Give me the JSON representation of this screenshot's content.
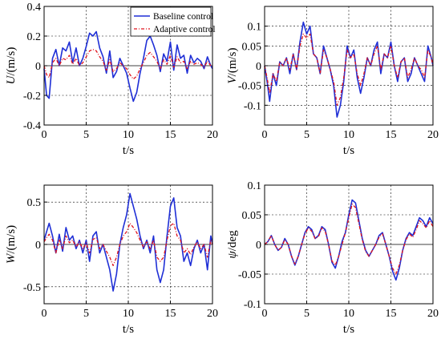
{
  "colors": {
    "baseline": "#1f2fd6",
    "adaptive": "#e0141e"
  },
  "legend": {
    "baseline": "Baseline control",
    "adaptive": "Adaptive control"
  },
  "chart_data": [
    {
      "type": "line",
      "ylabel_sym": "U",
      "ylabel_unit": "/(m/s)",
      "xlabel": "t/s",
      "xlim": [
        0,
        20
      ],
      "ylim": [
        -0.4,
        0.4
      ],
      "xticks": [
        0,
        5,
        10,
        15,
        20
      ],
      "yticks": [
        -0.4,
        -0.2,
        0,
        0.2,
        0.4
      ],
      "ytick_labels": [
        "-0.4",
        "-0.2",
        "0",
        "0.2",
        "0.4"
      ],
      "grid": true,
      "legend": "top-right",
      "series": [
        {
          "name": "Baseline control",
          "x": [
            0,
            0.3,
            0.6,
            1,
            1.4,
            1.8,
            2.2,
            2.6,
            3,
            3.4,
            3.8,
            4.2,
            4.6,
            5,
            5.4,
            5.8,
            6.2,
            6.6,
            7,
            7.4,
            7.8,
            8.2,
            8.6,
            9,
            9.4,
            9.8,
            10.2,
            10.6,
            11,
            11.4,
            11.8,
            12.2,
            12.6,
            13,
            13.4,
            13.8,
            14.2,
            14.6,
            15,
            15.4,
            15.8,
            16.2,
            16.6,
            17,
            17.4,
            17.8,
            18.2,
            18.6,
            19,
            19.4,
            19.8,
            20
          ],
          "values": [
            -0.02,
            -0.2,
            -0.22,
            0.05,
            0.11,
            0.0,
            0.12,
            0.1,
            0.16,
            0.02,
            0.12,
            0.0,
            0.05,
            0.13,
            0.22,
            0.2,
            0.23,
            0.12,
            0.06,
            -0.05,
            0.1,
            -0.08,
            -0.04,
            0.05,
            0.0,
            -0.05,
            -0.15,
            -0.24,
            -0.18,
            -0.05,
            0.05,
            0.17,
            0.2,
            0.14,
            0.07,
            -0.04,
            0.08,
            0.03,
            0.16,
            -0.03,
            0.14,
            0.05,
            0.07,
            -0.05,
            0.07,
            0.02,
            0.05,
            0.03,
            -0.02,
            0.06,
            0.0,
            -0.02
          ]
        },
        {
          "name": "Adaptive control",
          "x": [
            0,
            0.3,
            0.6,
            1,
            1.4,
            1.8,
            2.2,
            2.6,
            3,
            3.4,
            3.8,
            4.2,
            4.6,
            5,
            5.4,
            5.8,
            6.2,
            6.6,
            7,
            7.4,
            7.8,
            8.2,
            8.6,
            9,
            9.4,
            9.8,
            10.2,
            10.6,
            11,
            11.4,
            11.8,
            12.2,
            12.6,
            13,
            13.4,
            13.8,
            14.2,
            14.6,
            15,
            15.4,
            15.8,
            16.2,
            16.6,
            17,
            17.4,
            17.8,
            18.2,
            18.6,
            19,
            19.4,
            19.8,
            20
          ],
          "values": [
            0.0,
            -0.06,
            -0.08,
            0.02,
            0.05,
            0.0,
            0.05,
            0.04,
            0.07,
            0.01,
            0.05,
            0.0,
            0.02,
            0.06,
            0.1,
            0.11,
            0.1,
            0.06,
            0.03,
            -0.03,
            0.04,
            -0.04,
            -0.02,
            0.02,
            0.0,
            -0.02,
            -0.06,
            -0.09,
            -0.07,
            -0.02,
            0.02,
            0.07,
            0.09,
            0.06,
            0.03,
            -0.02,
            0.04,
            0.01,
            0.07,
            -0.01,
            0.06,
            0.02,
            0.03,
            -0.02,
            0.03,
            0.01,
            0.02,
            0.01,
            -0.01,
            0.03,
            0.0,
            -0.01
          ]
        }
      ]
    },
    {
      "type": "line",
      "ylabel_sym": "V",
      "ylabel_unit": "/(m/s)",
      "xlabel": "t/s",
      "xlim": [
        0,
        20
      ],
      "ylim": [
        -0.15,
        0.15
      ],
      "xticks": [
        0,
        5,
        10,
        15,
        20
      ],
      "yticks": [
        -0.1,
        -0.05,
        0,
        0.05,
        0.1
      ],
      "ytick_labels": [
        "-0.1",
        "-0.05",
        "0",
        "0.05",
        "0.1"
      ],
      "grid": true,
      "series": [
        {
          "name": "Baseline control",
          "x": [
            0,
            0.3,
            0.6,
            1,
            1.4,
            1.8,
            2.2,
            2.6,
            3,
            3.4,
            3.8,
            4.2,
            4.6,
            5,
            5.4,
            5.8,
            6.2,
            6.6,
            7,
            7.4,
            7.8,
            8.2,
            8.6,
            9,
            9.4,
            9.8,
            10.2,
            10.6,
            11,
            11.4,
            11.8,
            12.2,
            12.6,
            13,
            13.4,
            13.8,
            14.2,
            14.6,
            15,
            15.4,
            15.8,
            16.2,
            16.6,
            17,
            17.4,
            17.8,
            18.2,
            18.6,
            19,
            19.4,
            19.8,
            20
          ],
          "values": [
            0.0,
            -0.04,
            -0.09,
            -0.02,
            -0.05,
            0.01,
            0.0,
            0.02,
            -0.02,
            0.03,
            -0.01,
            0.06,
            0.11,
            0.08,
            0.1,
            0.03,
            0.02,
            -0.02,
            0.05,
            0.02,
            -0.01,
            -0.05,
            -0.13,
            -0.1,
            -0.04,
            0.05,
            0.02,
            0.04,
            -0.03,
            -0.07,
            -0.03,
            0.02,
            0.0,
            0.04,
            0.06,
            -0.02,
            0.03,
            0.02,
            0.06,
            0.0,
            -0.04,
            0.01,
            0.02,
            -0.04,
            -0.02,
            0.02,
            0.0,
            -0.02,
            -0.04,
            0.05,
            0.02,
            0.0
          ]
        },
        {
          "name": "Adaptive control",
          "x": [
            0,
            0.3,
            0.6,
            1,
            1.4,
            1.8,
            2.2,
            2.6,
            3,
            3.4,
            3.8,
            4.2,
            4.6,
            5,
            5.4,
            5.8,
            6.2,
            6.6,
            7,
            7.4,
            7.8,
            8.2,
            8.6,
            9,
            9.4,
            9.8,
            10.2,
            10.6,
            11,
            11.4,
            11.8,
            12.2,
            12.6,
            13,
            13.4,
            13.8,
            14.2,
            14.6,
            15,
            15.4,
            15.8,
            16.2,
            16.6,
            17,
            17.4,
            17.8,
            18.2,
            18.6,
            19,
            19.4,
            19.8,
            20
          ],
          "values": [
            0.0,
            -0.03,
            -0.07,
            -0.02,
            -0.04,
            0.01,
            0.0,
            0.02,
            -0.01,
            0.03,
            -0.01,
            0.05,
            0.08,
            0.07,
            0.08,
            0.03,
            0.02,
            -0.02,
            0.04,
            0.02,
            -0.01,
            -0.04,
            -0.1,
            -0.08,
            -0.03,
            0.04,
            0.02,
            0.03,
            -0.02,
            -0.05,
            -0.02,
            0.02,
            0.0,
            0.03,
            0.05,
            -0.01,
            0.03,
            0.02,
            0.05,
            0.0,
            -0.03,
            0.01,
            0.02,
            -0.03,
            -0.01,
            0.02,
            0.0,
            -0.01,
            -0.03,
            0.04,
            0.02,
            0.0
          ]
        }
      ]
    },
    {
      "type": "line",
      "ylabel_sym": "W",
      "ylabel_unit": "/(m/s)",
      "xlabel": "t/s",
      "xlim": [
        0,
        20
      ],
      "ylim": [
        -0.7,
        0.7
      ],
      "xticks": [
        0,
        5,
        10,
        15,
        20
      ],
      "yticks": [
        -0.5,
        0,
        0.5
      ],
      "ytick_labels": [
        "-0.5",
        "0",
        "0.5"
      ],
      "grid": true,
      "series": [
        {
          "name": "Baseline control",
          "x": [
            0,
            0.3,
            0.6,
            1,
            1.4,
            1.8,
            2.2,
            2.6,
            3,
            3.4,
            3.8,
            4.2,
            4.6,
            5,
            5.4,
            5.8,
            6.2,
            6.6,
            7,
            7.4,
            7.8,
            8.2,
            8.6,
            9,
            9.4,
            9.8,
            10.2,
            10.6,
            11,
            11.4,
            11.8,
            12.2,
            12.6,
            13,
            13.4,
            13.8,
            14.2,
            14.6,
            15,
            15.4,
            15.8,
            16.2,
            16.6,
            17,
            17.4,
            17.8,
            18.2,
            18.6,
            19,
            19.4,
            19.8,
            20
          ],
          "values": [
            0.05,
            0.15,
            0.25,
            0.1,
            -0.1,
            0.12,
            -0.08,
            0.2,
            0.05,
            0.1,
            -0.05,
            0.05,
            -0.1,
            0.05,
            -0.2,
            0.1,
            0.15,
            -0.1,
            0.0,
            -0.15,
            -0.3,
            -0.55,
            -0.35,
            0.0,
            0.2,
            0.35,
            0.6,
            0.45,
            0.3,
            0.1,
            -0.05,
            0.05,
            -0.1,
            0.1,
            -0.3,
            -0.45,
            -0.3,
            0.1,
            0.45,
            0.55,
            0.2,
            0.1,
            -0.2,
            -0.1,
            -0.25,
            -0.05,
            0.05,
            -0.1,
            0.0,
            -0.3,
            0.1,
            0.0
          ]
        },
        {
          "name": "Adaptive control",
          "x": [
            0,
            0.3,
            0.6,
            1,
            1.4,
            1.8,
            2.2,
            2.6,
            3,
            3.4,
            3.8,
            4.2,
            4.6,
            5,
            5.4,
            5.8,
            6.2,
            6.6,
            7,
            7.4,
            7.8,
            8.2,
            8.6,
            9,
            9.4,
            9.8,
            10.2,
            10.6,
            11,
            11.4,
            11.8,
            12.2,
            12.6,
            13,
            13.4,
            13.8,
            14.2,
            14.6,
            15,
            15.4,
            15.8,
            16.2,
            16.6,
            17,
            17.4,
            17.8,
            18.2,
            18.6,
            19,
            19.4,
            19.8,
            20
          ],
          "values": [
            0.03,
            0.08,
            0.12,
            0.05,
            -0.1,
            0.06,
            -0.05,
            0.1,
            0.02,
            0.05,
            -0.03,
            0.03,
            -0.05,
            0.02,
            -0.1,
            0.06,
            0.08,
            -0.05,
            0.0,
            -0.08,
            -0.15,
            -0.25,
            -0.15,
            0.0,
            0.1,
            0.15,
            0.25,
            0.2,
            0.14,
            0.05,
            -0.03,
            0.03,
            -0.05,
            0.05,
            -0.15,
            -0.2,
            -0.15,
            0.05,
            0.22,
            0.25,
            0.1,
            0.05,
            -0.1,
            -0.05,
            -0.12,
            -0.03,
            0.03,
            -0.05,
            0.0,
            -0.15,
            0.05,
            0.0
          ]
        }
      ]
    },
    {
      "type": "line",
      "ylabel_sym": "ψ",
      "ylabel_unit": "/deg",
      "xlabel": "t/s",
      "xlim": [
        0,
        20
      ],
      "ylim": [
        -0.1,
        0.1
      ],
      "xticks": [
        0,
        5,
        10,
        15,
        20
      ],
      "yticks": [
        -0.1,
        -0.05,
        0,
        0.05,
        0.1
      ],
      "ytick_labels": [
        "-0.1",
        "-0.05",
        "0",
        "0.05",
        "0.1"
      ],
      "grid": true,
      "series": [
        {
          "name": "Baseline control",
          "x": [
            0,
            0.4,
            0.8,
            1.2,
            1.6,
            2,
            2.4,
            2.8,
            3.2,
            3.6,
            4,
            4.4,
            4.8,
            5.2,
            5.6,
            6,
            6.4,
            6.8,
            7.2,
            7.6,
            8,
            8.4,
            8.8,
            9.2,
            9.6,
            10,
            10.4,
            10.8,
            11.2,
            11.6,
            12,
            12.4,
            12.8,
            13.2,
            13.6,
            14,
            14.4,
            14.8,
            15.2,
            15.6,
            16,
            16.4,
            16.8,
            17.2,
            17.6,
            18,
            18.4,
            18.8,
            19.2,
            19.6,
            20
          ],
          "values": [
            0.0,
            0.005,
            0.015,
            0.0,
            -0.01,
            -0.005,
            0.01,
            0.0,
            -0.02,
            -0.035,
            -0.02,
            0.0,
            0.02,
            0.03,
            0.025,
            0.01,
            0.015,
            0.03,
            0.025,
            0.0,
            -0.03,
            -0.04,
            -0.02,
            0.005,
            0.02,
            0.05,
            0.075,
            0.07,
            0.04,
            0.01,
            -0.01,
            -0.02,
            -0.01,
            0.0,
            0.015,
            0.02,
            0.0,
            -0.02,
            -0.045,
            -0.06,
            -0.04,
            -0.01,
            0.01,
            0.02,
            0.015,
            0.03,
            0.045,
            0.04,
            0.03,
            0.045,
            0.035
          ]
        },
        {
          "name": "Adaptive control",
          "x": [
            0,
            0.4,
            0.8,
            1.2,
            1.6,
            2,
            2.4,
            2.8,
            3.2,
            3.6,
            4,
            4.4,
            4.8,
            5.2,
            5.6,
            6,
            6.4,
            6.8,
            7.2,
            7.6,
            8,
            8.4,
            8.8,
            9.2,
            9.6,
            10,
            10.4,
            10.8,
            11.2,
            11.6,
            12,
            12.4,
            12.8,
            13.2,
            13.6,
            14,
            14.4,
            14.8,
            15.2,
            15.6,
            16,
            16.4,
            16.8,
            17.2,
            17.6,
            18,
            18.4,
            18.8,
            19.2,
            19.6,
            20
          ],
          "values": [
            0.0,
            0.005,
            0.015,
            0.0,
            -0.01,
            -0.005,
            0.008,
            0.0,
            -0.02,
            -0.033,
            -0.02,
            0.0,
            0.018,
            0.028,
            0.022,
            0.01,
            0.013,
            0.028,
            0.022,
            0.0,
            -0.028,
            -0.035,
            -0.02,
            0.0,
            0.02,
            0.045,
            0.068,
            0.062,
            0.035,
            0.008,
            -0.012,
            -0.02,
            -0.01,
            0.0,
            0.012,
            0.018,
            0.0,
            -0.02,
            -0.04,
            -0.05,
            -0.035,
            -0.01,
            0.008,
            0.018,
            0.012,
            0.025,
            0.04,
            0.035,
            0.028,
            0.04,
            0.03
          ]
        }
      ]
    }
  ]
}
